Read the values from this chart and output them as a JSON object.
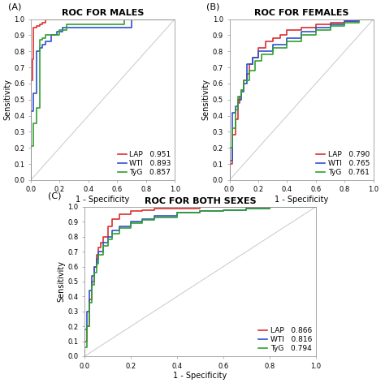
{
  "panel_A": {
    "title": "ROC FOR MALES",
    "label": "(A)",
    "curves": [
      {
        "name": "LAP",
        "auc": "0.951",
        "color": "#d93030",
        "fpr": [
          0,
          0,
          0.01,
          0.01,
          0.02,
          0.02,
          0.04,
          0.04,
          0.06,
          0.06,
          0.08,
          0.08,
          0.1,
          0.1,
          0.12,
          0.12,
          0.2,
          0.2,
          0.65,
          0.65,
          1.0
        ],
        "tpr": [
          0,
          0.62,
          0.62,
          0.75,
          0.75,
          0.95,
          0.95,
          0.96,
          0.96,
          0.97,
          0.97,
          0.98,
          0.98,
          1.0,
          1.0,
          1.0,
          1.0,
          1.0,
          1.0,
          1.0,
          1.0
        ]
      },
      {
        "name": "WTI",
        "auc": "0.893",
        "color": "#3050d0",
        "fpr": [
          0,
          0,
          0.02,
          0.02,
          0.04,
          0.04,
          0.06,
          0.06,
          0.08,
          0.08,
          0.1,
          0.1,
          0.14,
          0.14,
          0.18,
          0.18,
          0.22,
          0.22,
          0.7,
          0.7,
          1.0
        ],
        "tpr": [
          0,
          0.43,
          0.43,
          0.54,
          0.54,
          0.8,
          0.8,
          0.82,
          0.82,
          0.84,
          0.84,
          0.86,
          0.86,
          0.9,
          0.9,
          0.92,
          0.92,
          0.95,
          0.95,
          1.0,
          1.0
        ]
      },
      {
        "name": "TyG",
        "auc": "0.857",
        "color": "#30a030",
        "fpr": [
          0,
          0,
          0.02,
          0.02,
          0.04,
          0.04,
          0.06,
          0.06,
          0.08,
          0.08,
          0.1,
          0.1,
          0.2,
          0.2,
          0.25,
          0.25,
          0.65,
          0.65,
          1.0
        ],
        "tpr": [
          0,
          0.21,
          0.21,
          0.35,
          0.35,
          0.45,
          0.45,
          0.87,
          0.87,
          0.88,
          0.88,
          0.9,
          0.9,
          0.93,
          0.93,
          0.97,
          0.97,
          1.0,
          1.0
        ]
      }
    ]
  },
  "panel_B": {
    "title": "ROC FOR FEMALES",
    "label": "(B)",
    "curves": [
      {
        "name": "LAP",
        "auc": "0.790",
        "color": "#d93030",
        "fpr": [
          0,
          0,
          0.02,
          0.02,
          0.04,
          0.04,
          0.06,
          0.06,
          0.07,
          0.07,
          0.08,
          0.08,
          0.1,
          0.1,
          0.12,
          0.12,
          0.14,
          0.14,
          0.16,
          0.16,
          0.2,
          0.2,
          0.25,
          0.25,
          0.3,
          0.3,
          0.35,
          0.35,
          0.4,
          0.4,
          0.5,
          0.5,
          0.6,
          0.6,
          0.7,
          0.7,
          0.8,
          0.8,
          0.9,
          0.9,
          1.0
        ],
        "tpr": [
          0,
          0.1,
          0.1,
          0.28,
          0.28,
          0.38,
          0.38,
          0.48,
          0.48,
          0.52,
          0.52,
          0.56,
          0.56,
          0.62,
          0.62,
          0.66,
          0.66,
          0.72,
          0.72,
          0.76,
          0.76,
          0.82,
          0.82,
          0.86,
          0.86,
          0.88,
          0.88,
          0.9,
          0.9,
          0.93,
          0.93,
          0.95,
          0.95,
          0.97,
          0.97,
          0.98,
          0.98,
          0.99,
          0.99,
          1.0,
          1.0
        ]
      },
      {
        "name": "WTI",
        "auc": "0.765",
        "color": "#3050d0",
        "fpr": [
          0,
          0,
          0.02,
          0.02,
          0.04,
          0.04,
          0.06,
          0.06,
          0.08,
          0.08,
          0.1,
          0.1,
          0.12,
          0.12,
          0.16,
          0.16,
          0.2,
          0.2,
          0.3,
          0.3,
          0.4,
          0.4,
          0.5,
          0.5,
          0.6,
          0.6,
          0.7,
          0.7,
          0.8,
          0.8,
          0.9,
          0.9,
          1.0
        ],
        "tpr": [
          0,
          0.12,
          0.12,
          0.42,
          0.42,
          0.46,
          0.46,
          0.5,
          0.5,
          0.55,
          0.55,
          0.6,
          0.6,
          0.72,
          0.72,
          0.76,
          0.76,
          0.8,
          0.8,
          0.84,
          0.84,
          0.88,
          0.88,
          0.92,
          0.92,
          0.95,
          0.95,
          0.97,
          0.97,
          0.99,
          0.99,
          1.0,
          1.0
        ]
      },
      {
        "name": "TyG",
        "auc": "0.761",
        "color": "#30a030",
        "fpr": [
          0,
          0,
          0.02,
          0.02,
          0.04,
          0.04,
          0.06,
          0.06,
          0.08,
          0.08,
          0.1,
          0.1,
          0.14,
          0.14,
          0.18,
          0.18,
          0.22,
          0.22,
          0.3,
          0.3,
          0.4,
          0.4,
          0.5,
          0.5,
          0.6,
          0.6,
          0.7,
          0.7,
          0.8,
          0.8,
          0.9,
          0.9,
          1.0
        ],
        "tpr": [
          0,
          0.2,
          0.2,
          0.32,
          0.32,
          0.44,
          0.44,
          0.52,
          0.52,
          0.56,
          0.56,
          0.62,
          0.62,
          0.68,
          0.68,
          0.74,
          0.74,
          0.78,
          0.78,
          0.82,
          0.82,
          0.86,
          0.86,
          0.9,
          0.9,
          0.93,
          0.93,
          0.96,
          0.96,
          0.98,
          0.98,
          1.0,
          1.0
        ]
      }
    ]
  },
  "panel_C": {
    "title": "ROC FOR BOTH SEXES",
    "label": "(C)",
    "curves": [
      {
        "name": "LAP",
        "auc": "0.866",
        "color": "#d93030",
        "fpr": [
          0,
          0,
          0.01,
          0.01,
          0.02,
          0.02,
          0.03,
          0.03,
          0.04,
          0.04,
          0.05,
          0.05,
          0.06,
          0.06,
          0.07,
          0.07,
          0.08,
          0.08,
          0.1,
          0.1,
          0.12,
          0.12,
          0.15,
          0.15,
          0.2,
          0.2,
          0.25,
          0.25,
          0.3,
          0.3,
          0.4,
          0.4,
          0.5,
          0.5,
          0.6,
          0.6,
          0.7,
          0.7,
          0.8,
          0.8,
          0.9,
          0.9,
          1.0
        ],
        "tpr": [
          0,
          0.1,
          0.1,
          0.2,
          0.2,
          0.38,
          0.38,
          0.5,
          0.5,
          0.6,
          0.6,
          0.68,
          0.68,
          0.73,
          0.73,
          0.76,
          0.76,
          0.8,
          0.8,
          0.87,
          0.87,
          0.92,
          0.92,
          0.95,
          0.95,
          0.97,
          0.97,
          0.98,
          0.98,
          0.99,
          0.99,
          0.99,
          0.99,
          1.0,
          1.0,
          1.0,
          1.0,
          1.0,
          1.0,
          1.0,
          1.0,
          1.0,
          1.0
        ]
      },
      {
        "name": "WTI",
        "auc": "0.816",
        "color": "#3050d0",
        "fpr": [
          0,
          0,
          0.01,
          0.01,
          0.02,
          0.02,
          0.03,
          0.03,
          0.04,
          0.04,
          0.05,
          0.05,
          0.06,
          0.06,
          0.08,
          0.08,
          0.1,
          0.1,
          0.12,
          0.12,
          0.15,
          0.15,
          0.2,
          0.2,
          0.25,
          0.25,
          0.3,
          0.3,
          0.4,
          0.4,
          0.5,
          0.5,
          0.6,
          0.6,
          0.7,
          0.7,
          0.8,
          0.8,
          0.9,
          0.9,
          1.0
        ],
        "tpr": [
          0,
          0.18,
          0.18,
          0.3,
          0.3,
          0.44,
          0.44,
          0.54,
          0.54,
          0.6,
          0.6,
          0.65,
          0.65,
          0.7,
          0.7,
          0.76,
          0.76,
          0.8,
          0.8,
          0.84,
          0.84,
          0.87,
          0.87,
          0.9,
          0.9,
          0.92,
          0.92,
          0.94,
          0.94,
          0.96,
          0.96,
          0.97,
          0.97,
          0.98,
          0.98,
          0.99,
          0.99,
          1.0,
          1.0,
          1.0,
          1.0
        ]
      },
      {
        "name": "TyG",
        "auc": "0.794",
        "color": "#30a030",
        "fpr": [
          0,
          0,
          0.01,
          0.01,
          0.02,
          0.02,
          0.03,
          0.03,
          0.04,
          0.04,
          0.05,
          0.05,
          0.06,
          0.06,
          0.08,
          0.08,
          0.1,
          0.1,
          0.12,
          0.12,
          0.15,
          0.15,
          0.2,
          0.2,
          0.25,
          0.25,
          0.3,
          0.3,
          0.4,
          0.4,
          0.5,
          0.5,
          0.6,
          0.6,
          0.7,
          0.7,
          0.8,
          0.8,
          0.9,
          0.9,
          1.0
        ],
        "tpr": [
          0,
          0.06,
          0.06,
          0.2,
          0.2,
          0.36,
          0.36,
          0.48,
          0.48,
          0.56,
          0.56,
          0.62,
          0.62,
          0.68,
          0.68,
          0.74,
          0.74,
          0.78,
          0.78,
          0.82,
          0.82,
          0.86,
          0.86,
          0.89,
          0.89,
          0.91,
          0.91,
          0.93,
          0.93,
          0.96,
          0.96,
          0.97,
          0.97,
          0.98,
          0.98,
          0.99,
          0.99,
          1.0,
          1.0,
          1.0,
          1.0
        ]
      }
    ]
  },
  "diag_color": "#c8c8c8",
  "xlabel": "1 - Specificity",
  "ylabel": "Sensitivity",
  "yticks_AB": [
    0,
    0.1,
    0.2,
    0.3,
    0.4,
    0.5,
    0.6,
    0.7,
    0.8,
    0.9,
    1
  ],
  "xticks_AB": [
    0,
    0.2,
    0.4,
    0.6,
    0.8,
    1
  ],
  "yticks_C": [
    0,
    0.1,
    0.2,
    0.3,
    0.4,
    0.5,
    0.6,
    0.7,
    0.8,
    0.9,
    1
  ],
  "xticks_C": [
    0,
    0.2,
    0.4,
    0.6,
    0.8,
    1
  ],
  "tick_fontsize": 6,
  "label_fontsize": 7,
  "title_fontsize": 8,
  "panel_label_fontsize": 8,
  "legend_fontsize": 6.5,
  "line_width": 1.2,
  "bg_color": "#ffffff",
  "spine_color": "#999999"
}
